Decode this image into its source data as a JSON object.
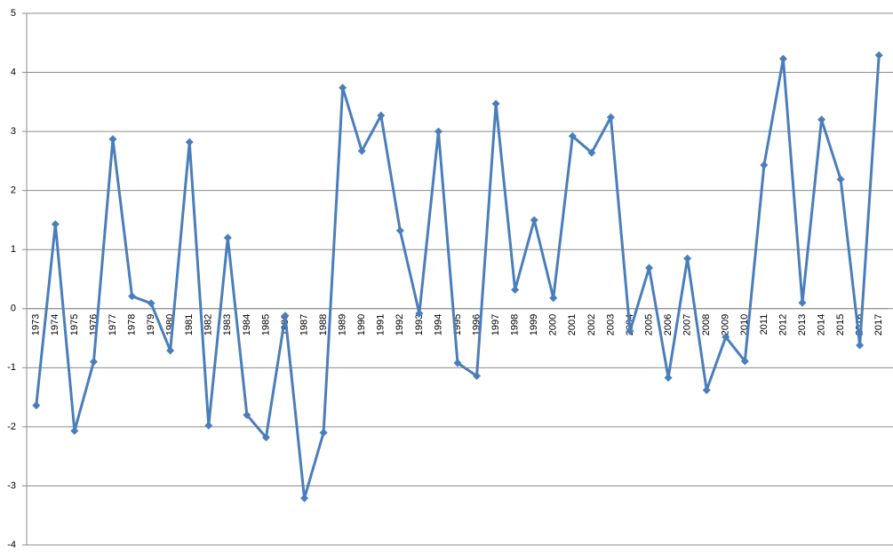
{
  "chart_data": {
    "type": "line",
    "categories": [
      "1973",
      "1974",
      "1975",
      "1976",
      "1977",
      "1978",
      "1979",
      "1980",
      "1981",
      "1982",
      "1983",
      "1984",
      "1985",
      "1986",
      "1987",
      "1988",
      "1989",
      "1990",
      "1991",
      "1992",
      "1993",
      "1994",
      "1995",
      "1996",
      "1997",
      "1998",
      "1999",
      "2000",
      "2001",
      "2002",
      "2003",
      "2004",
      "2005",
      "2006",
      "2007",
      "2008",
      "2009",
      "2010",
      "2011",
      "2012",
      "2013",
      "2014",
      "2015",
      "2016",
      "2017"
    ],
    "values": [
      -1.64,
      1.43,
      -2.07,
      -0.9,
      2.87,
      0.21,
      0.09,
      -0.71,
      2.82,
      -1.98,
      1.2,
      -1.8,
      -2.18,
      -0.12,
      -3.21,
      -2.1,
      3.74,
      2.67,
      3.27,
      1.32,
      -0.08,
      3.0,
      -0.92,
      -1.14,
      3.47,
      0.32,
      1.5,
      0.18,
      2.92,
      2.64,
      3.24,
      -0.38,
      0.69,
      -1.17,
      0.85,
      -1.38,
      -0.48,
      -0.89,
      2.43,
      4.23,
      0.1,
      3.2,
      2.19,
      -0.62,
      4.29
    ],
    "color": "#4a7ebb",
    "ylim": [
      -4,
      5
    ],
    "yticks": [
      -4,
      -3,
      -2,
      -1,
      0,
      1,
      2,
      3,
      4,
      5
    ],
    "grid": true
  }
}
